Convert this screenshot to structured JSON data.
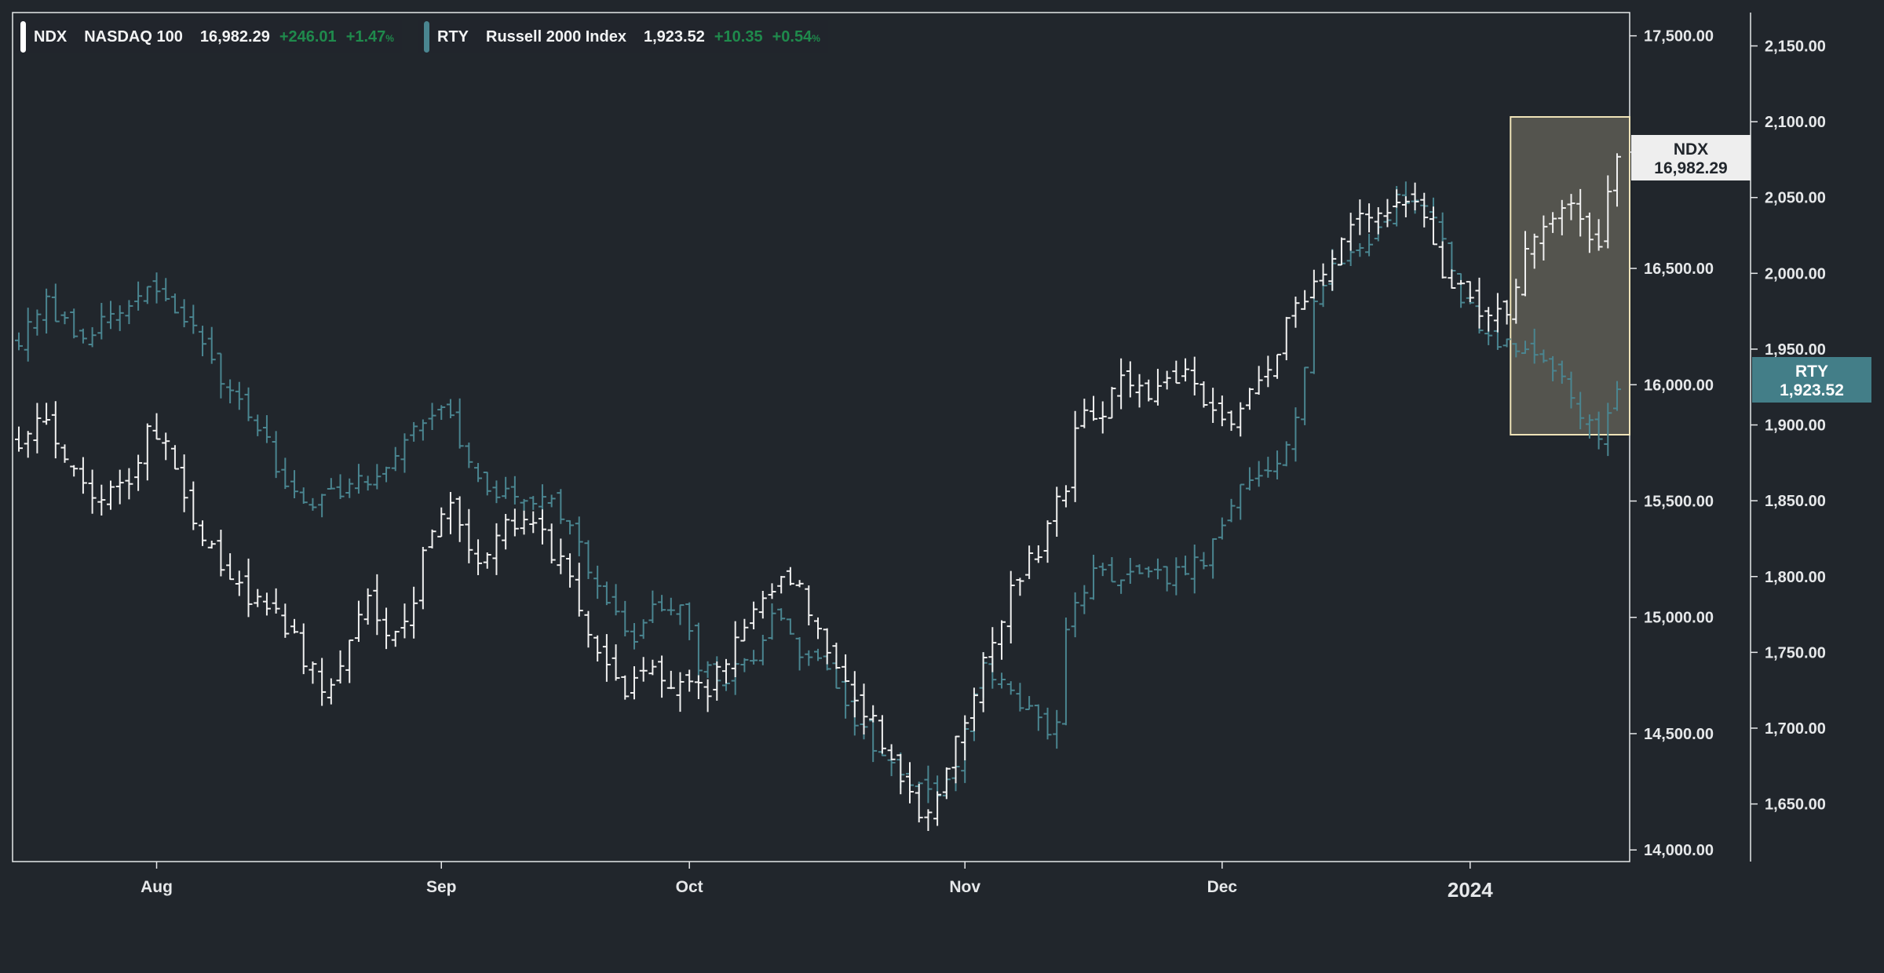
{
  "legend": {
    "ndx": {
      "symbol": "NDX",
      "name": "NASDAQ 100",
      "last": "16,982.29",
      "change": "+246.01",
      "percent": "+1.47",
      "percent_unit": "%",
      "color": "#ffffff"
    },
    "rty": {
      "symbol": "RTY",
      "name": "Russell 2000 Index",
      "last": "1,923.52",
      "change": "+10.35",
      "percent": "+0.54",
      "percent_unit": "%",
      "color": "#4a8590"
    },
    "change_color": "#1f8a4c"
  },
  "price_tags": {
    "ndx": {
      "symbol": "NDX",
      "value": "16,982.29",
      "bg": "#eeeeee",
      "fg": "#21262c"
    },
    "rty": {
      "symbol": "RTY",
      "value": "1,923.52",
      "bg": "#437e88",
      "fg": "#ffffff"
    }
  },
  "chart_data": {
    "type": "ohlc",
    "x_axis": {
      "ticks": [
        {
          "label": "Aug",
          "index": 15
        },
        {
          "label": "Sep",
          "index": 46
        },
        {
          "label": "Oct",
          "index": 73
        },
        {
          "label": "Nov",
          "index": 103
        },
        {
          "label": "Dec",
          "index": 131
        },
        {
          "label": "2024",
          "index": 158,
          "bold": true
        }
      ]
    },
    "left_axis": {
      "series": "NDX",
      "range": [
        13950,
        17600
      ],
      "ticks": [
        14000,
        14500,
        15000,
        15500,
        16000,
        16500,
        17000,
        17500
      ],
      "labels": [
        "14,000.00",
        "14,500.00",
        "15,000.00",
        "15,500.00",
        "16,000.00",
        "16,500.00",
        "17,000.00",
        "17,500.00"
      ]
    },
    "right_axis": {
      "series": "RTY",
      "range": [
        1612,
        2172
      ],
      "ticks": [
        1650,
        1700,
        1750,
        1800,
        1850,
        1900,
        1950,
        2000,
        2050,
        2100,
        2150
      ],
      "labels": [
        "1,650.00",
        "1,700.00",
        "1,750.00",
        "1,800.00",
        "1,850.00",
        "1,900.00",
        "1,950.00",
        "2,000.00",
        "2,050.00",
        "2,100.00",
        "2,150.00"
      ]
    },
    "highlight_range": {
      "from_index": 163,
      "to_index": 174
    },
    "ndx_waypoints": [
      [
        0,
        15750
      ],
      [
        3,
        15880
      ],
      [
        6,
        15600
      ],
      [
        9,
        15520
      ],
      [
        12,
        15590
      ],
      [
        14,
        15780
      ],
      [
        16,
        15740
      ],
      [
        20,
        15330
      ],
      [
        25,
        15100
      ],
      [
        29,
        14960
      ],
      [
        33,
        14700
      ],
      [
        35,
        14780
      ],
      [
        38,
        15080
      ],
      [
        40,
        14900
      ],
      [
        42,
        14950
      ],
      [
        45,
        15400
      ],
      [
        47,
        15530
      ],
      [
        50,
        15220
      ],
      [
        53,
        15410
      ],
      [
        57,
        15350
      ],
      [
        60,
        15170
      ],
      [
        63,
        14850
      ],
      [
        66,
        14640
      ],
      [
        68,
        14790
      ],
      [
        71,
        14690
      ],
      [
        75,
        14680
      ],
      [
        78,
        14870
      ],
      [
        82,
        15150
      ],
      [
        84,
        15180
      ],
      [
        87,
        14980
      ],
      [
        90,
        14700
      ],
      [
        94,
        14480
      ],
      [
        96,
        14320
      ],
      [
        98,
        14130
      ],
      [
        100,
        14250
      ],
      [
        102,
        14450
      ],
      [
        105,
        14830
      ],
      [
        108,
        15100
      ],
      [
        111,
        15300
      ],
      [
        113,
        15500
      ],
      [
        114,
        15530
      ],
      [
        115,
        15840
      ],
      [
        118,
        15890
      ],
      [
        120,
        16000
      ],
      [
        124,
        15960
      ],
      [
        127,
        16070
      ],
      [
        130,
        15900
      ],
      [
        132,
        15850
      ],
      [
        136,
        16060
      ],
      [
        138,
        16250
      ],
      [
        141,
        16450
      ],
      [
        144,
        16600
      ],
      [
        147,
        16740
      ],
      [
        150,
        16800
      ],
      [
        153,
        16760
      ],
      [
        155,
        16500
      ],
      [
        157,
        16400
      ],
      [
        160,
        16300
      ],
      [
        162,
        16330
      ],
      [
        164,
        16550
      ],
      [
        166,
        16650
      ],
      [
        168,
        16760
      ],
      [
        170,
        16720
      ],
      [
        172,
        16600
      ],
      [
        174,
        16980
      ]
    ],
    "rty_waypoints": [
      [
        0,
        1955
      ],
      [
        3,
        1980
      ],
      [
        6,
        1960
      ],
      [
        10,
        1968
      ],
      [
        14,
        1990
      ],
      [
        17,
        1975
      ],
      [
        20,
        1955
      ],
      [
        23,
        1920
      ],
      [
        26,
        1900
      ],
      [
        29,
        1860
      ],
      [
        32,
        1850
      ],
      [
        36,
        1860
      ],
      [
        39,
        1865
      ],
      [
        42,
        1890
      ],
      [
        45,
        1910
      ],
      [
        47,
        1905
      ],
      [
        49,
        1870
      ],
      [
        52,
        1855
      ],
      [
        55,
        1850
      ],
      [
        58,
        1855
      ],
      [
        61,
        1820
      ],
      [
        64,
        1780
      ],
      [
        67,
        1758
      ],
      [
        69,
        1778
      ],
      [
        72,
        1778
      ],
      [
        74,
        1740
      ],
      [
        77,
        1732
      ],
      [
        80,
        1748
      ],
      [
        82,
        1778
      ],
      [
        85,
        1750
      ],
      [
        88,
        1740
      ],
      [
        91,
        1705
      ],
      [
        94,
        1680
      ],
      [
        97,
        1665
      ],
      [
        100,
        1660
      ],
      [
        102,
        1675
      ],
      [
        105,
        1740
      ],
      [
        107,
        1730
      ],
      [
        110,
        1712
      ],
      [
        112,
        1695
      ],
      [
        113,
        1700
      ],
      [
        114,
        1770
      ],
      [
        117,
        1800
      ],
      [
        120,
        1800
      ],
      [
        123,
        1798
      ],
      [
        126,
        1802
      ],
      [
        129,
        1810
      ],
      [
        131,
        1830
      ],
      [
        133,
        1860
      ],
      [
        135,
        1870
      ],
      [
        137,
        1880
      ],
      [
        139,
        1902
      ],
      [
        141,
        1983
      ],
      [
        144,
        2010
      ],
      [
        147,
        2020
      ],
      [
        150,
        2050
      ],
      [
        153,
        2048
      ],
      [
        155,
        2020
      ],
      [
        157,
        1985
      ],
      [
        160,
        1958
      ],
      [
        163,
        1950
      ],
      [
        166,
        1945
      ],
      [
        168,
        1930
      ],
      [
        170,
        1910
      ],
      [
        172,
        1890
      ],
      [
        174,
        1923.52
      ]
    ],
    "bar_count": 175
  }
}
